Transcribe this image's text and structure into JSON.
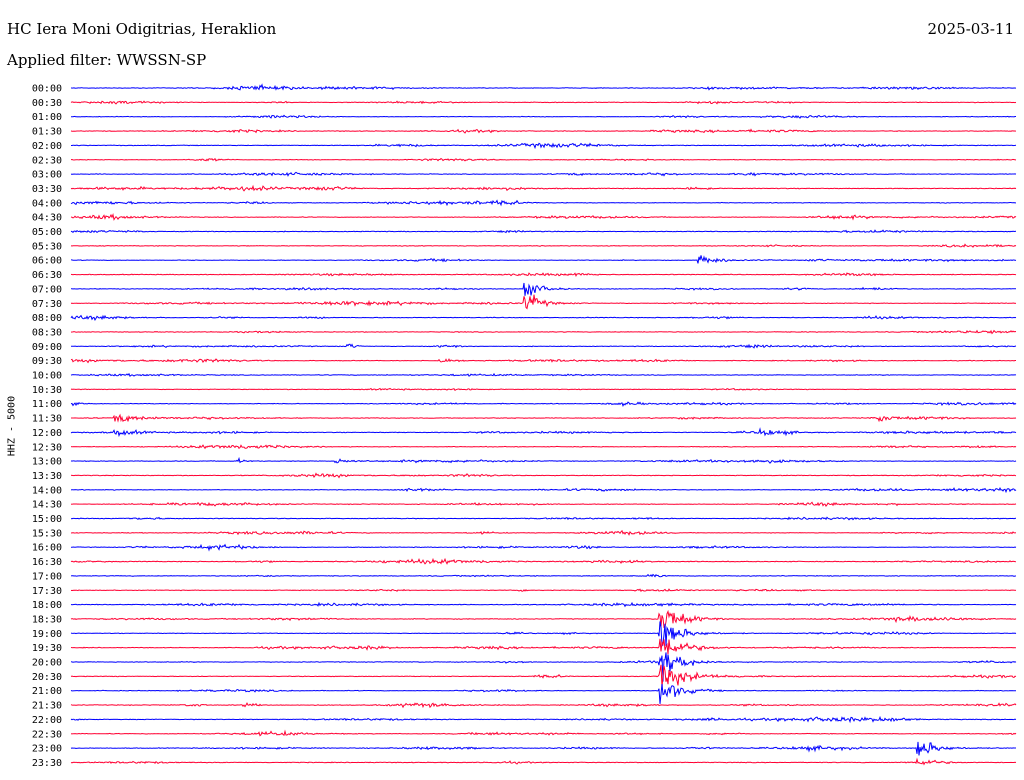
{
  "header": {
    "station": "HC Iera Moni Odigitrias, Heraklion",
    "date": "2025-03-11",
    "filter": "Applied filter: WWSSN-SP"
  },
  "colors": {
    "even": "#0000ff",
    "odd": "#ff0033"
  },
  "chart_data": {
    "type": "line",
    "title": "HC Iera Moni Odigitrias, Heraklion",
    "ylabel": "HHZ - 5000",
    "time_labels": [
      "00:00",
      "00:30",
      "01:00",
      "01:30",
      "02:00",
      "02:30",
      "03:00",
      "03:30",
      "04:00",
      "04:30",
      "05:00",
      "05:30",
      "06:00",
      "06:30",
      "07:00",
      "07:30",
      "08:00",
      "08:30",
      "09:00",
      "09:30",
      "10:00",
      "10:30",
      "11:00",
      "11:30",
      "12:00",
      "12:30",
      "13:00",
      "13:30",
      "14:00",
      "14:30",
      "15:00",
      "15:30",
      "16:00",
      "16:30",
      "17:00",
      "17:30",
      "18:00",
      "18:30",
      "19:00",
      "19:30",
      "20:00",
      "20:30",
      "21:00",
      "21:30",
      "22:00",
      "22:30",
      "23:00",
      "23:30"
    ],
    "trace_colors": "alternating blue/red per 30-minute row",
    "events": [
      {
        "row": 12,
        "minute": 20,
        "amplitude": 0.85,
        "duration_min": 1.8
      },
      {
        "row": 14,
        "minute": 14.5,
        "amplitude": 2.4,
        "duration_min": 1.0
      },
      {
        "row": 15,
        "minute": 14.5,
        "amplitude": 2.0,
        "duration_min": 1.2
      },
      {
        "row": 18,
        "minute": 8.9,
        "amplitude": 0.5,
        "duration_min": 0.6
      },
      {
        "row": 19,
        "minute": 11.8,
        "amplitude": 0.6,
        "duration_min": 1.0
      },
      {
        "row": 23,
        "minute": 1.5,
        "amplitude": 0.95,
        "duration_min": 2.0
      },
      {
        "row": 23,
        "minute": 25.8,
        "amplitude": 0.75,
        "duration_min": 0.6
      },
      {
        "row": 24,
        "minute": 1.5,
        "amplitude": 0.6,
        "duration_min": 2.0
      },
      {
        "row": 24,
        "minute": 22.0,
        "amplitude": 0.8,
        "duration_min": 0.9
      },
      {
        "row": 26,
        "minute": 5.4,
        "amplitude": 0.55,
        "duration_min": 0.4
      },
      {
        "row": 26,
        "minute": 8.5,
        "amplitude": 0.55,
        "duration_min": 1.3
      },
      {
        "row": 35,
        "minute": 14.3,
        "amplitude": 0.45,
        "duration_min": 0.4
      },
      {
        "row": 37,
        "minute": 18.8,
        "amplitude": 3.6,
        "duration_min": 1.6
      },
      {
        "row": 38,
        "minute": 18.8,
        "amplitude": 3.3,
        "duration_min": 1.6
      },
      {
        "row": 39,
        "minute": 18.8,
        "amplitude": 3.6,
        "duration_min": 1.6
      },
      {
        "row": 40,
        "minute": 18.8,
        "amplitude": 3.0,
        "duration_min": 1.6
      },
      {
        "row": 41,
        "minute": 18.8,
        "amplitude": 3.6,
        "duration_min": 1.6
      },
      {
        "row": 42,
        "minute": 18.8,
        "amplitude": 3.0,
        "duration_min": 1.6
      },
      {
        "row": 43,
        "minute": 5.6,
        "amplitude": 0.7,
        "duration_min": 0.5
      },
      {
        "row": 46,
        "minute": 27.0,
        "amplitude": 2.2,
        "duration_min": 1.4
      },
      {
        "row": 47,
        "minute": 27.0,
        "amplitude": 0.7,
        "duration_min": 1.0
      }
    ]
  }
}
